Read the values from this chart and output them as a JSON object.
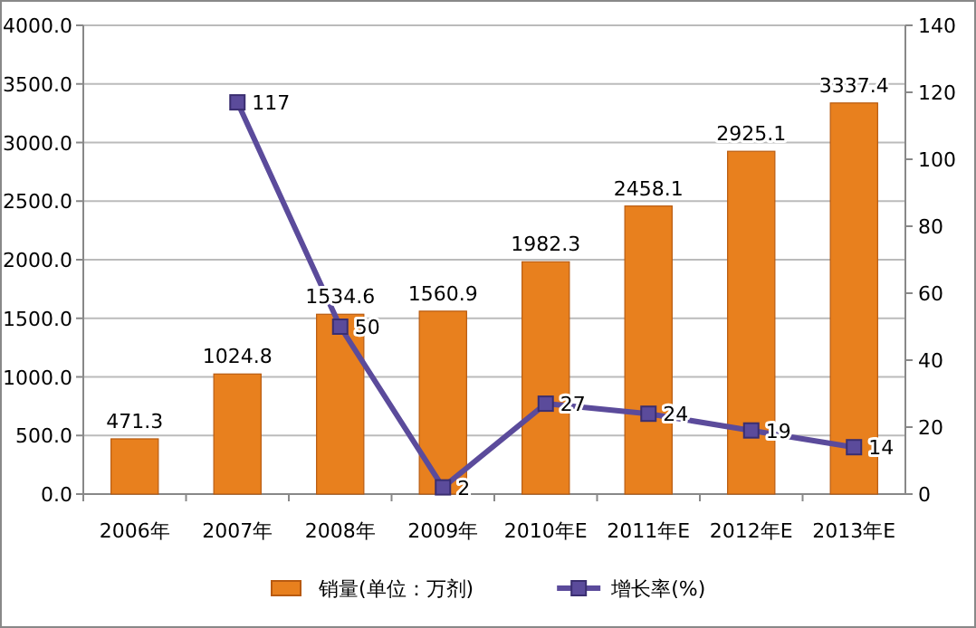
{
  "chart_data": {
    "type": "bar",
    "categories": [
      "2006年",
      "2007年",
      "2008年",
      "2009年",
      "2010年E",
      "2011年E",
      "2012年E",
      "2013年E"
    ],
    "series": [
      {
        "name": "销量(单位：万剂)",
        "color": "#e8801e",
        "values": [
          471.3,
          1024.8,
          1534.6,
          1560.9,
          1982.3,
          2458.1,
          2925.1,
          3337.4
        ]
      },
      {
        "name": "增长率(%)",
        "type": "line",
        "axis": "y2",
        "color": "#5b4b9b",
        "marker": "square",
        "values": [
          null,
          117,
          50,
          2,
          27,
          24,
          19,
          14
        ]
      }
    ],
    "ylim": [
      0,
      4000
    ],
    "yticks": [
      {
        "value": 0,
        "label": "0.0"
      },
      {
        "value": 500,
        "label": "500.0"
      },
      {
        "value": 1000,
        "label": "1000.0"
      },
      {
        "value": 1500,
        "label": "1500.0"
      },
      {
        "value": 2000,
        "label": "2000.0"
      },
      {
        "value": 2500,
        "label": "2500.0"
      },
      {
        "value": 3000,
        "label": "3000.0"
      },
      {
        "value": 3500,
        "label": "3500.0"
      },
      {
        "value": 4000,
        "label": "4000.0"
      }
    ],
    "y2lim": [
      0,
      140
    ],
    "y2ticks": [
      0,
      20,
      40,
      60,
      80,
      100,
      120,
      140
    ],
    "grid": "y",
    "legend": "bottom",
    "data_labels": true
  }
}
